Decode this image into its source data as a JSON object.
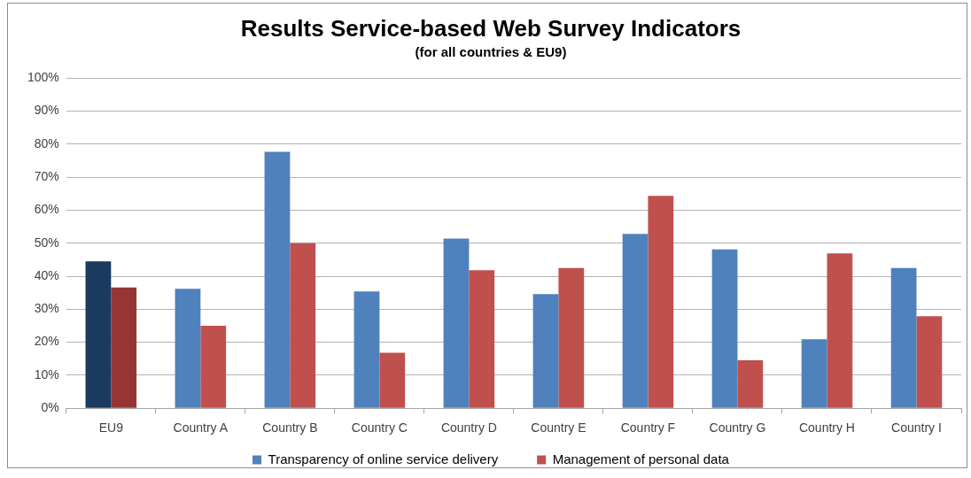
{
  "chart_data": {
    "type": "bar",
    "title": "Results Service-based Web Survey Indicators",
    "subtitle": "(for all countries & EU9)",
    "categories": [
      "EU9",
      "Country A",
      "Country B",
      "Country C",
      "Country D",
      "Country E",
      "Country F",
      "Country G",
      "Country H",
      "Country I"
    ],
    "series": [
      {
        "name": "Transparency of online service delivery",
        "color": "#4f81bd",
        "colors": [
          "#1b3a5f",
          "#4f81bd",
          "#4f81bd",
          "#4f81bd",
          "#4f81bd",
          "#4f81bd",
          "#4f81bd",
          "#4f81bd",
          "#4f81bd",
          "#4f81bd"
        ],
        "values": [
          44.5,
          36.2,
          77.7,
          35.4,
          51.4,
          34.6,
          52.8,
          48.1,
          20.9,
          42.5
        ]
      },
      {
        "name": "Management of personal data",
        "color": "#c0504d",
        "colors": [
          "#963634",
          "#c0504d",
          "#c0504d",
          "#c0504d",
          "#c0504d",
          "#c0504d",
          "#c0504d",
          "#c0504d",
          "#c0504d",
          "#c0504d"
        ],
        "values": [
          36.6,
          25.0,
          50.0,
          16.8,
          41.8,
          42.5,
          64.3,
          14.5,
          46.9,
          27.9
        ]
      }
    ],
    "ylim": [
      0,
      100
    ],
    "yticks": [
      {
        "value": 0,
        "label": "0%"
      },
      {
        "value": 10,
        "label": "10%"
      },
      {
        "value": 20,
        "label": "20%"
      },
      {
        "value": 30,
        "label": "30%"
      },
      {
        "value": 40,
        "label": "40%"
      },
      {
        "value": 50,
        "label": "50%"
      },
      {
        "value": 60,
        "label": "60%"
      },
      {
        "value": 70,
        "label": "70%"
      },
      {
        "value": 80,
        "label": "80%"
      },
      {
        "value": 90,
        "label": "90%"
      },
      {
        "value": 100,
        "label": "100%"
      }
    ],
    "grid": "y",
    "legend": "bottom"
  }
}
